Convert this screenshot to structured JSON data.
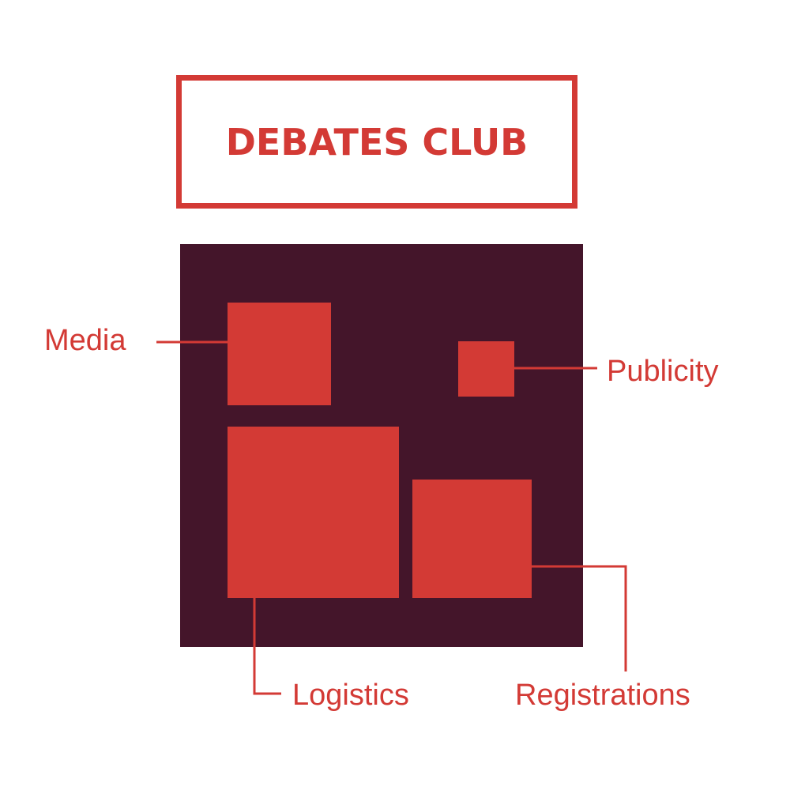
{
  "title": "DEBATES CLUB",
  "colors": {
    "accent": "#d33a35",
    "panel": "#44152a",
    "background": "#ffffff"
  },
  "items": {
    "media": "Media",
    "publicity": "Publicity",
    "logistics": "Logistics",
    "registrations": "Registrations"
  }
}
